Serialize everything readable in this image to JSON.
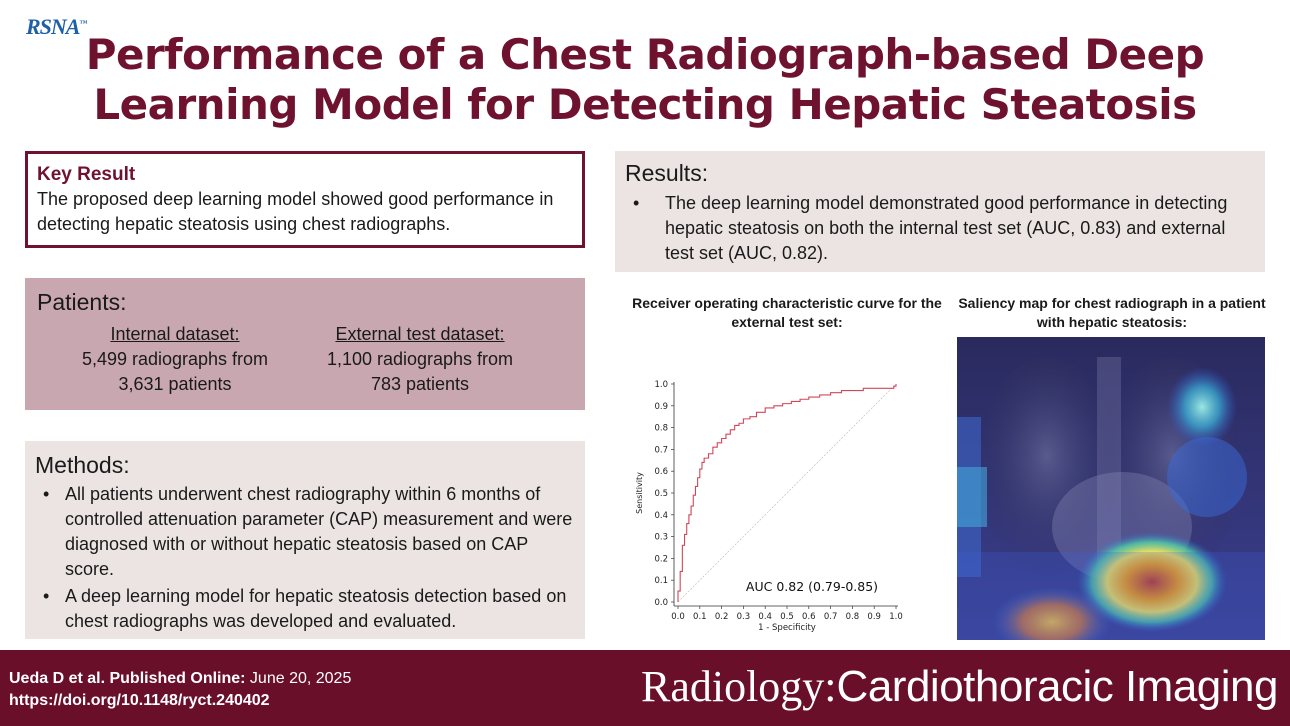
{
  "logo": "RSNA",
  "title": "Performance of a Chest Radiograph-based Deep Learning Model for Detecting Hepatic Steatosis",
  "key_result": {
    "heading": "Key Result",
    "text": "The proposed deep learning model showed good performance in detecting hepatic steatosis using chest radiographs."
  },
  "patients": {
    "heading": "Patients:",
    "internal_label": "Internal dataset:",
    "internal_line1": "5,499 radiographs from",
    "internal_line2": "3,631 patients",
    "external_label": "External test dataset:",
    "external_line1": "1,100 radiographs from",
    "external_line2": "783 patients"
  },
  "methods": {
    "heading": "Methods:",
    "items": [
      "All patients underwent chest radiography within 6 months of controlled attenuation parameter (CAP) measurement and were diagnosed with or without hepatic steatosis based on CAP score.",
      "A deep learning model for hepatic steatosis detection based on chest radiographs was developed and evaluated."
    ]
  },
  "results": {
    "heading": "Results:",
    "items": [
      "The deep learning model demonstrated good performance in detecting hepatic steatosis on both the internal test set (AUC, 0.83) and external test set (AUC, 0.82)."
    ]
  },
  "roc_caption": "Receiver operating characteristic curve for the external test set:",
  "saliency_caption": "Saliency map for chest radiograph in a patient with hepatic steatosis:",
  "chart_data": {
    "type": "line",
    "title": "",
    "xlabel": "1 - Specificity",
    "ylabel": "Sensitivity",
    "xlim": [
      0,
      1
    ],
    "ylim": [
      0,
      1
    ],
    "xticks": [
      "0.0",
      "0.1",
      "0.2",
      "0.3",
      "0.4",
      "0.5",
      "0.6",
      "0.7",
      "0.8",
      "0.9",
      "1.0"
    ],
    "yticks": [
      "0.0",
      "0.1",
      "0.2",
      "0.3",
      "0.4",
      "0.5",
      "0.6",
      "0.7",
      "0.8",
      "0.9",
      "1.0"
    ],
    "annotation": "AUC 0.82 (0.79-0.85)",
    "colors": {
      "roc": "#d0475a",
      "diagonal": "#c8c8c8"
    },
    "series": [
      {
        "x": [
          0.0,
          0.0,
          0.01,
          0.01,
          0.02,
          0.02,
          0.03,
          0.04,
          0.05,
          0.06,
          0.07,
          0.08,
          0.09,
          0.1,
          0.11,
          0.12,
          0.14,
          0.16,
          0.18,
          0.2,
          0.22,
          0.24,
          0.26,
          0.28,
          0.3,
          0.33,
          0.36,
          0.4,
          0.44,
          0.48,
          0.52,
          0.56,
          0.6,
          0.65,
          0.7,
          0.75,
          0.8,
          0.85,
          0.9,
          0.95,
          0.99,
          1.0
        ],
        "y": [
          0.0,
          0.05,
          0.1,
          0.14,
          0.2,
          0.26,
          0.31,
          0.36,
          0.4,
          0.44,
          0.49,
          0.53,
          0.57,
          0.61,
          0.64,
          0.66,
          0.68,
          0.71,
          0.73,
          0.75,
          0.77,
          0.79,
          0.81,
          0.82,
          0.84,
          0.85,
          0.87,
          0.89,
          0.9,
          0.91,
          0.92,
          0.93,
          0.94,
          0.95,
          0.96,
          0.97,
          0.97,
          0.98,
          0.98,
          0.98,
          0.99,
          1.0
        ]
      }
    ]
  },
  "footer": {
    "author": "Ueda D et al. Published Online:",
    "date": " June 20, 2025",
    "doi": "https://doi.org/10.1148/ryct.240402",
    "brand_r": "Radiology:",
    "brand_c": "Cardiothoracic Imaging"
  }
}
